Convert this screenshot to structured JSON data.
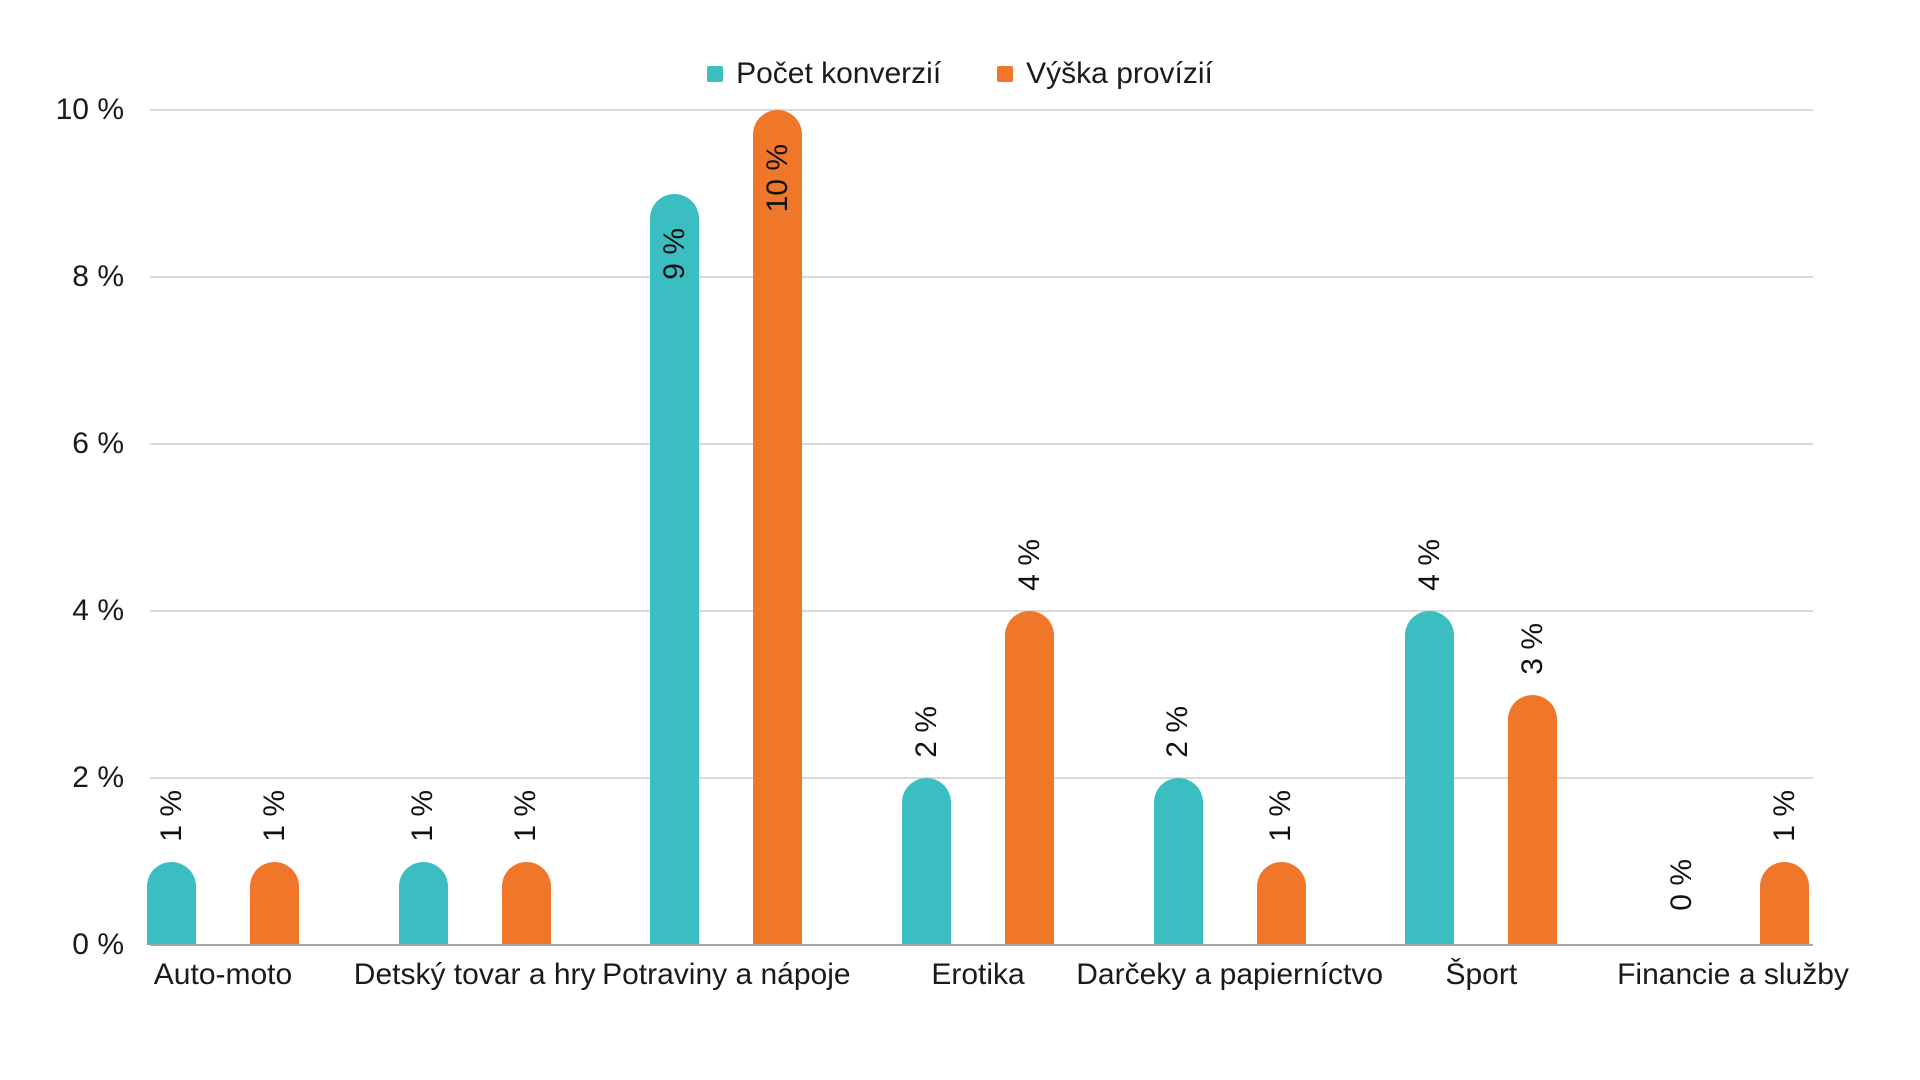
{
  "legend": [
    {
      "name": "Počet konverzií",
      "color": "#3BBEC1"
    },
    {
      "name": "Výška provízií",
      "color": "#F0762A"
    }
  ],
  "chart_data": {
    "type": "bar",
    "title": "",
    "xlabel": "",
    "ylabel": "",
    "categories": [
      "Auto-moto",
      "Detský tovar a hry",
      "Potraviny a nápoje",
      "Erotika",
      "Darčeky a papierníctvo",
      "Šport",
      "Financie a služby"
    ],
    "series": [
      {
        "name": "Počet konverzií",
        "color": "#3BBEC1",
        "values": [
          1,
          1,
          9,
          2,
          2,
          4,
          0
        ],
        "data_labels": [
          "1 %",
          "1 %",
          "9 %",
          "2 %",
          "2 %",
          "4 %",
          "0 %"
        ]
      },
      {
        "name": "Výška provízií",
        "color": "#F0762A",
        "values": [
          1,
          1,
          10,
          4,
          1,
          3,
          1
        ],
        "data_labels": [
          "1 %",
          "1 %",
          "10 %",
          "4 %",
          "1 %",
          "3 %",
          "1 %"
        ]
      }
    ],
    "ylim": [
      0,
      10
    ],
    "yticks": [
      "0 %",
      "2 %",
      "4 %",
      "6 %",
      "8 %",
      "10 %"
    ],
    "grid": true,
    "legend_position": "top",
    "data_label_rotation": -90,
    "data_label_inside_threshold": 9
  }
}
